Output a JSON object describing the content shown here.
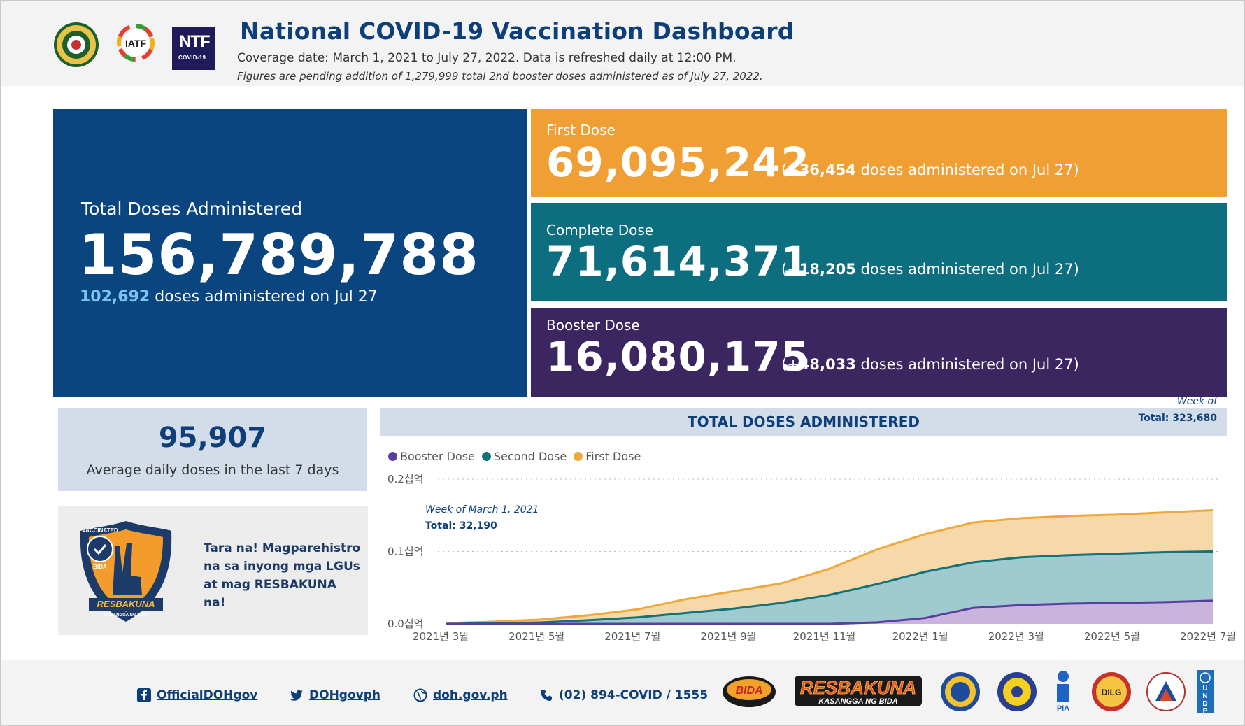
{
  "header": {
    "title": "National COVID-19 Vaccination Dashboard",
    "subtitle": "Coverage date: March 1, 2021 to July 27, 2022. Data is refreshed daily at 12:00 PM.",
    "note": "Figures are pending addition of 1,279,999 total 2nd booster doses administered as of July 27, 2022.",
    "logos": {
      "iatf_text": "IATF",
      "ntf_main": "NTF",
      "ntf_sub": "COVID-19"
    }
  },
  "kpis": {
    "total": {
      "label": "Total Doses Administered",
      "value": "156,789,788",
      "daily_value": "102,692",
      "daily_suffix": " doses administered on Jul 27"
    },
    "first": {
      "label": "First Dose",
      "value": "69,095,242",
      "inc_prefix": "(+",
      "inc_value": "36,454",
      "inc_suffix": " doses administered on Jul 27)"
    },
    "complete": {
      "label": "Complete Dose",
      "value": "71,614,371",
      "inc_prefix": "(+",
      "inc_value": "18,205",
      "inc_suffix": " doses administered on Jul 27)"
    },
    "booster": {
      "label": "Booster Dose",
      "value": "16,080,175",
      "inc_prefix": "(+",
      "inc_value": "48,033",
      "inc_suffix": " doses administered on Jul 27)"
    }
  },
  "average": {
    "value": "95,907",
    "label": "Average daily doses in the last 7 days"
  },
  "promo": {
    "text": "Tara na! Magparehistro na sa inyong mga LGUs at mag RESBAKUNA na!",
    "badge_top": "VACCINATED",
    "badge_side": "BIDA",
    "brand": "RESBAKUNA",
    "tagline": "KASANGGA NG BIDA"
  },
  "chart_data": {
    "type": "area",
    "title": "TOTAL DOSES ADMINISTERED",
    "stacked": false,
    "x": [
      "2021-03",
      "2021-04",
      "2021-05",
      "2021-06",
      "2021-07",
      "2021-08",
      "2021-09",
      "2021-10",
      "2021-11",
      "2021-12",
      "2022-01",
      "2022-02",
      "2022-03",
      "2022-04",
      "2022-05",
      "2022-06",
      "2022-07"
    ],
    "x_tick_labels": [
      "2021년 3월",
      "2021년 5월",
      "2021년 7월",
      "2021년 9월",
      "2021년 11월",
      "2022년 1월",
      "2022년 3월",
      "2022년 5월",
      "2022년 7월"
    ],
    "y_tick_labels": [
      "0.2십억",
      "0.1십억",
      "0.0십억"
    ],
    "ylim": [
      0,
      0.2
    ],
    "series": [
      {
        "name": "First Dose",
        "color": "#f0a83a",
        "fill": "#f7d8a8",
        "values": [
          0.001,
          0.003,
          0.006,
          0.012,
          0.02,
          0.034,
          0.045,
          0.056,
          0.076,
          0.103,
          0.124,
          0.14,
          0.146,
          0.149,
          0.151,
          0.154,
          0.157
        ]
      },
      {
        "name": "Second Dose",
        "color": "#137178",
        "fill": "#9fcad0",
        "values": [
          0.0,
          0.001,
          0.002,
          0.005,
          0.009,
          0.015,
          0.021,
          0.029,
          0.04,
          0.055,
          0.072,
          0.085,
          0.092,
          0.095,
          0.097,
          0.099,
          0.1
        ]
      },
      {
        "name": "Booster Dose",
        "color": "#5b3d9e",
        "fill": "#c9b4dd",
        "values": [
          0.0,
          0.0,
          0.0,
          0.0,
          0.0,
          0.0,
          0.0,
          0.0,
          0.0,
          0.002,
          0.008,
          0.022,
          0.026,
          0.028,
          0.029,
          0.03,
          0.032
        ]
      }
    ],
    "legend": [
      "Booster Dose",
      "Second Dose",
      "First Dose"
    ],
    "annotations": [
      {
        "label": "Week of March 1, 2021",
        "total": "Total: 32,190"
      },
      {
        "label": "Week of",
        "total": "Total: 323,680"
      }
    ]
  },
  "footer": {
    "facebook": "OfficialDOHgov",
    "twitter": "DOHgovph",
    "website": "doh.gov.ph",
    "phone": "(02) 894-COVID / 1555",
    "partner_labels": {
      "bida": "BIDA",
      "resbakuna": "RESBAKUNA",
      "resbakuna_tag": "KASANGGA NG BIDA",
      "pia": "PIA",
      "dilg": "DILG",
      "undp_letters": [
        "U",
        "N",
        "D",
        "P"
      ]
    }
  },
  "colors": {
    "navy": "#0b457f",
    "orange": "#ef9f34",
    "teal": "#0c6e7e",
    "purple": "#3b2660",
    "title_blue": "#0e3f78",
    "highlight": "#7fc1f5"
  }
}
